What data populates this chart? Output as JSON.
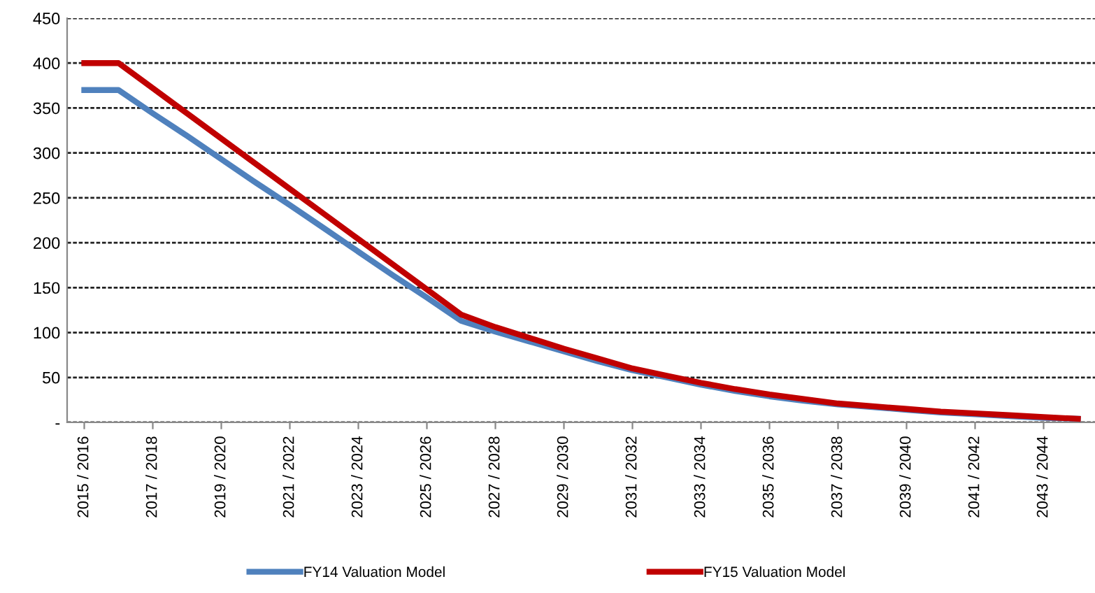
{
  "chart_data": {
    "type": "line",
    "categories": [
      "2015 / 2016",
      null,
      "2017 / 2018",
      null,
      "2019 / 2020",
      null,
      "2021 / 2022",
      null,
      "2023 / 2024",
      null,
      "2025 / 2026",
      null,
      "2027 / 2028",
      null,
      "2029 / 2030",
      null,
      "2031 / 2032",
      null,
      "2033 / 2034",
      null,
      "2035 / 2036",
      null,
      "2037 / 2038",
      null,
      "2039 / 2040",
      null,
      "2041 / 2042",
      null,
      "2043 / 2044",
      null
    ],
    "series": [
      {
        "name": "FY14 Valuation Model",
        "color": "#4f81bd",
        "values": [
          370,
          370,
          344,
          319,
          293,
          267,
          242,
          216,
          190,
          164,
          139,
          113,
          101,
          90,
          79,
          68,
          58,
          50,
          42,
          35,
          29,
          24,
          20,
          17,
          14,
          11,
          9,
          7,
          5,
          4
        ]
      },
      {
        "name": "FY15 Valuation Model",
        "color": "#c00000",
        "values": [
          400,
          400,
          372,
          344,
          316,
          288,
          260,
          232,
          204,
          176,
          148,
          120,
          106,
          94,
          82,
          71,
          60,
          52,
          44,
          37,
          31,
          26,
          21,
          18,
          15,
          12,
          10,
          8,
          6,
          4
        ]
      }
    ],
    "ylim": [
      0,
      450
    ],
    "yticks": [
      {
        "value": 0,
        "label": "-"
      },
      50,
      100,
      150,
      200,
      250,
      300,
      350,
      400,
      450
    ],
    "grid": "y",
    "line_style": "solid",
    "marker": "none",
    "legend": "bottom"
  }
}
